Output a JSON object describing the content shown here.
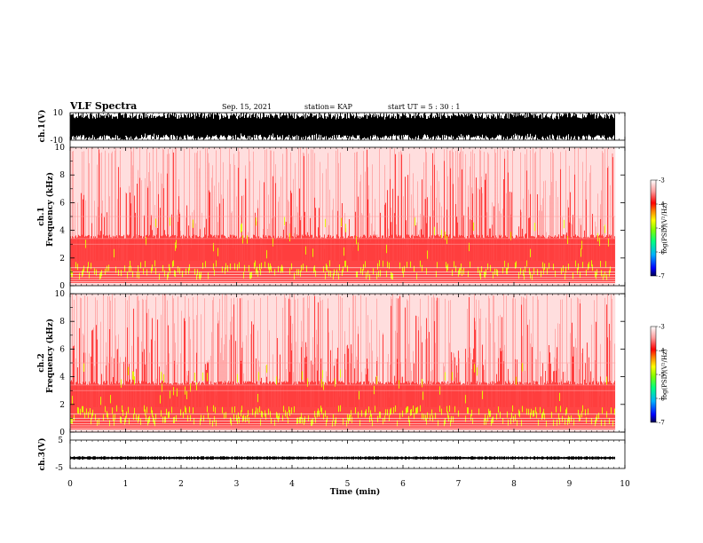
{
  "header": {
    "title": "VLF Spectra",
    "date": "Sep. 15, 2021",
    "station": "station= KAP",
    "start_ut": "start  UT =   5 : 30 : 1"
  },
  "chart_data": [
    {
      "type": "line",
      "panel": "ch1-waveform",
      "ylabel": "ch.1(V)",
      "ylim": [
        -10,
        10
      ],
      "yticks": [
        "10",
        "-10"
      ],
      "description_of_values": "dense waveform saturating between -10 and 10 V"
    },
    {
      "type": "heatmap",
      "panel": "ch1-spectrogram",
      "ylabel_line1": "ch.1",
      "ylabel_line2": "Frequency  (kHz)",
      "ylim": [
        0,
        10
      ],
      "yticks": [
        "0",
        "2",
        "4",
        "6",
        "8",
        "10"
      ],
      "colorbar": {
        "label": "log(PSD)(V²/Hz)",
        "range": [
          -7,
          -3
        ],
        "ticks": [
          "-3",
          "-4",
          "-5",
          "-6",
          "-7"
        ]
      }
    },
    {
      "type": "heatmap",
      "panel": "ch2-spectrogram",
      "ylabel_line1": "ch.2",
      "ylabel_line2": "Frequency  (kHz)",
      "ylim": [
        0,
        10
      ],
      "yticks": [
        "0",
        "2",
        "4",
        "6",
        "8",
        "10"
      ],
      "colorbar": {
        "label": "log(PSD)(V²/Hz)",
        "range": [
          -7,
          -3
        ],
        "ticks": [
          "-3",
          "-4",
          "-5",
          "-6",
          "-7"
        ]
      }
    },
    {
      "type": "line",
      "panel": "ch3-waveform",
      "ylabel": "ch.3(V)",
      "ylim": [
        -5,
        5
      ],
      "yticks": [
        "5",
        "-5"
      ],
      "level": -1.3
    }
  ],
  "xaxis": {
    "label": "Time  (min)",
    "range": [
      0,
      10
    ],
    "ticks": [
      "0",
      "1",
      "2",
      "3",
      "4",
      "5",
      "6",
      "7",
      "8",
      "9",
      "10"
    ],
    "data_end": 9.83
  },
  "colors": {
    "spectrogram_dominant": "#ff2a2a",
    "spectrogram_high": "#e6ff00",
    "waveform": "#000000"
  }
}
